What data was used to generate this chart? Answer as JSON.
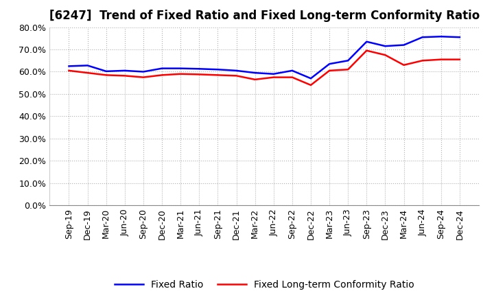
{
  "title": "[6247]  Trend of Fixed Ratio and Fixed Long-term Conformity Ratio",
  "x_labels": [
    "Sep-19",
    "Dec-19",
    "Mar-20",
    "Jun-20",
    "Sep-20",
    "Dec-20",
    "Mar-21",
    "Jun-21",
    "Sep-21",
    "Dec-21",
    "Mar-22",
    "Jun-22",
    "Sep-22",
    "Dec-22",
    "Mar-23",
    "Jun-23",
    "Sep-23",
    "Dec-23",
    "Mar-24",
    "Jun-24",
    "Sep-24",
    "Dec-24"
  ],
  "fixed_ratio": [
    62.5,
    62.8,
    60.2,
    60.5,
    60.0,
    61.5,
    61.5,
    61.3,
    61.0,
    60.5,
    59.5,
    59.0,
    60.5,
    57.0,
    63.5,
    65.0,
    73.5,
    71.5,
    72.0,
    75.5,
    75.8,
    75.5
  ],
  "fixed_lt_ratio": [
    60.5,
    59.5,
    58.5,
    58.2,
    57.5,
    58.5,
    59.0,
    58.8,
    58.5,
    58.2,
    56.5,
    57.5,
    57.5,
    54.0,
    60.5,
    61.0,
    69.5,
    67.5,
    63.0,
    65.0,
    65.5,
    65.5
  ],
  "fixed_ratio_color": "#0000ff",
  "fixed_lt_ratio_color": "#ff0000",
  "ylim": [
    0,
    80
  ],
  "yticks": [
    0,
    10,
    20,
    30,
    40,
    50,
    60,
    70,
    80
  ],
  "ytick_labels": [
    "0.0%",
    "10.0%",
    "20.0%",
    "30.0%",
    "40.0%",
    "50.0%",
    "60.0%",
    "70.0%",
    "80.0%"
  ],
  "background_color": "#ffffff",
  "plot_bg_color": "#ffffff",
  "grid_color": "#b0b0b0",
  "legend_fixed_ratio": "Fixed Ratio",
  "legend_fixed_lt_ratio": "Fixed Long-term Conformity Ratio",
  "title_fontsize": 12,
  "axis_fontsize": 9,
  "legend_fontsize": 10,
  "line_width": 1.8
}
